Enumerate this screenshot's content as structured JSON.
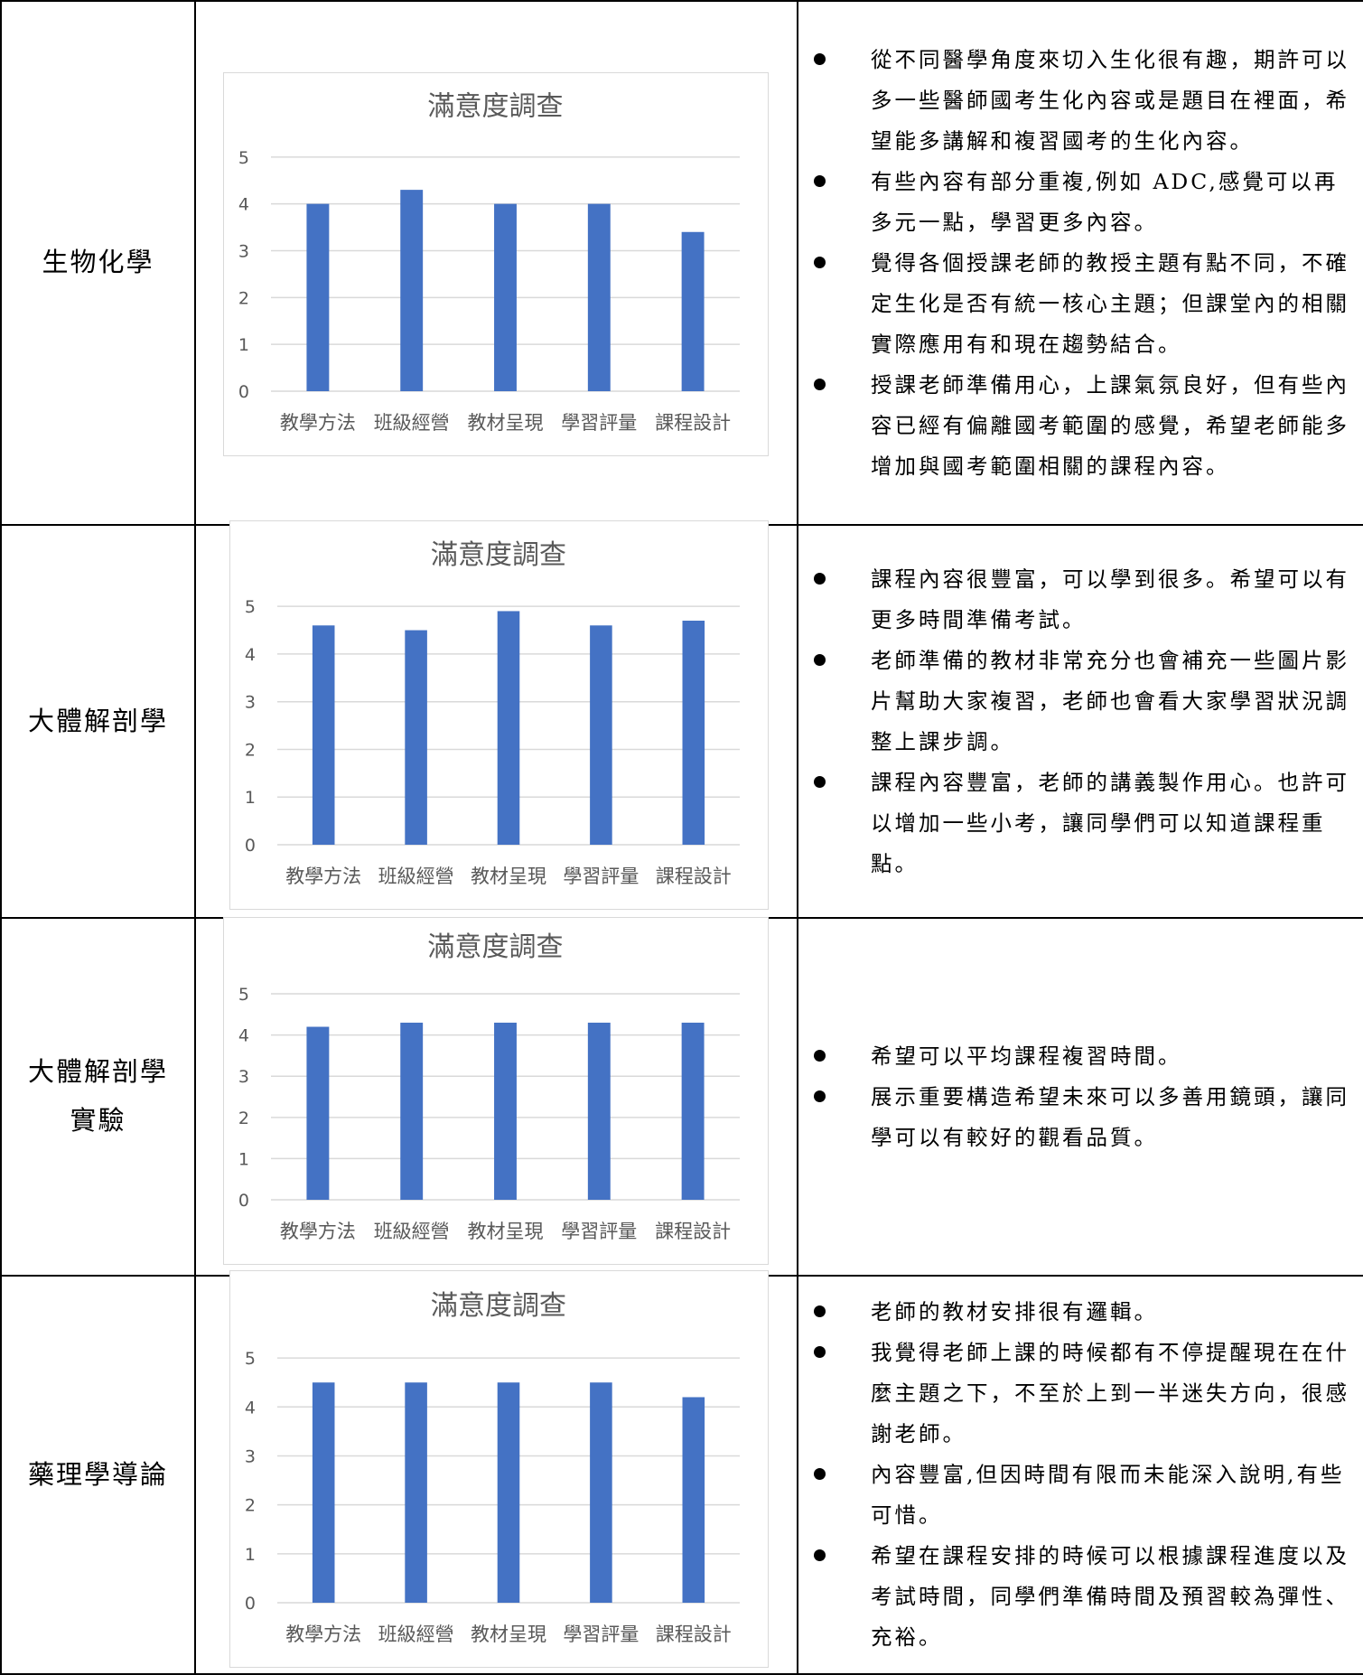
{
  "colors": {
    "bar": "#4472c4",
    "gridline": "#d9d9d9",
    "axis_text": "#595959",
    "frame": "#d9d9d9"
  },
  "rows": [
    {
      "course": [
        "生物化學"
      ],
      "comments": [
        "從不同醫學角度來切入生化很有趣，期許可以多一些醫師國考生化內容或是題目在裡面，希望能多講解和複習國考的生化內容。",
        "有些內容有部分重複,例如 ADC,感覺可以再多元一點，學習更多內容。",
        "覺得各個授課老師的教授主題有點不同，不確定生化是否有統一核心主題；但課堂內的相關實際應用有和現在趨勢結合。",
        "授課老師準備用心，上課氣氛良好，但有些內容已經有偏離國考範圍的感覺，希望老師能多增加與國考範圍相關的課程內容。"
      ]
    },
    {
      "course": [
        "大體解剖學"
      ],
      "comments": [
        "課程內容很豐富，可以學到很多。希望可以有更多時間準備考試。",
        "老師準備的教材非常充分也會補充一些圖片影片幫助大家複習，老師也會看大家學習狀況調整上課步調。",
        "課程內容豐富，老師的講義製作用心。也許可以增加一些小考，讓同學們可以知道課程重點。"
      ]
    },
    {
      "course": [
        "大體解剖學",
        "實驗"
      ],
      "comments": [
        "希望可以平均課程複習時間。",
        "展示重要構造希望未來可以多善用鏡頭，讓同學可以有較好的觀看品質。"
      ]
    },
    {
      "course": [
        "藥理學導論"
      ],
      "comments": [
        "老師的教材安排很有邏輯。",
        "我覺得老師上課的時候都有不停提醒現在在什麼主題之下，不至於上到一半迷失方向，很感謝老師。",
        "內容豐富,但因時間有限而未能深入說明,有些可惜。",
        "希望在課程安排的時候可以根據課程進度以及考試時間，同學們準備時間及預習較為彈性、充裕。"
      ]
    }
  ],
  "chart_data": [
    {
      "type": "bar",
      "title": "滿意度調查",
      "categories": [
        "教學方法",
        "班級經營",
        "教材呈現",
        "學習評量",
        "課程設計"
      ],
      "values": [
        4.0,
        4.3,
        4.0,
        4.0,
        3.4
      ],
      "ylim": [
        0,
        5
      ],
      "yticks": [
        0,
        1,
        2,
        3,
        4,
        5
      ],
      "grid": true,
      "legend": "none"
    },
    {
      "type": "bar",
      "title": "滿意度調查",
      "categories": [
        "教學方法",
        "班級經營",
        "教材呈現",
        "學習評量",
        "課程設計"
      ],
      "values": [
        4.6,
        4.5,
        4.9,
        4.6,
        4.7
      ],
      "ylim": [
        0,
        5
      ],
      "yticks": [
        0,
        1,
        2,
        3,
        4,
        5
      ],
      "grid": true,
      "legend": "none"
    },
    {
      "type": "bar",
      "title": "滿意度調查",
      "categories": [
        "教學方法",
        "班級經營",
        "教材呈現",
        "學習評量",
        "課程設計"
      ],
      "values": [
        4.2,
        4.3,
        4.3,
        4.3,
        4.3
      ],
      "ylim": [
        0,
        5
      ],
      "yticks": [
        0,
        1,
        2,
        3,
        4,
        5
      ],
      "grid": true,
      "legend": "none"
    },
    {
      "type": "bar",
      "title": "滿意度調查",
      "categories": [
        "教學方法",
        "班級經營",
        "教材呈現",
        "學習評量",
        "課程設計"
      ],
      "values": [
        4.5,
        4.5,
        4.5,
        4.5,
        4.2
      ],
      "ylim": [
        0,
        5
      ],
      "yticks": [
        0,
        1,
        2,
        3,
        4,
        5
      ],
      "grid": true,
      "legend": "none"
    }
  ]
}
